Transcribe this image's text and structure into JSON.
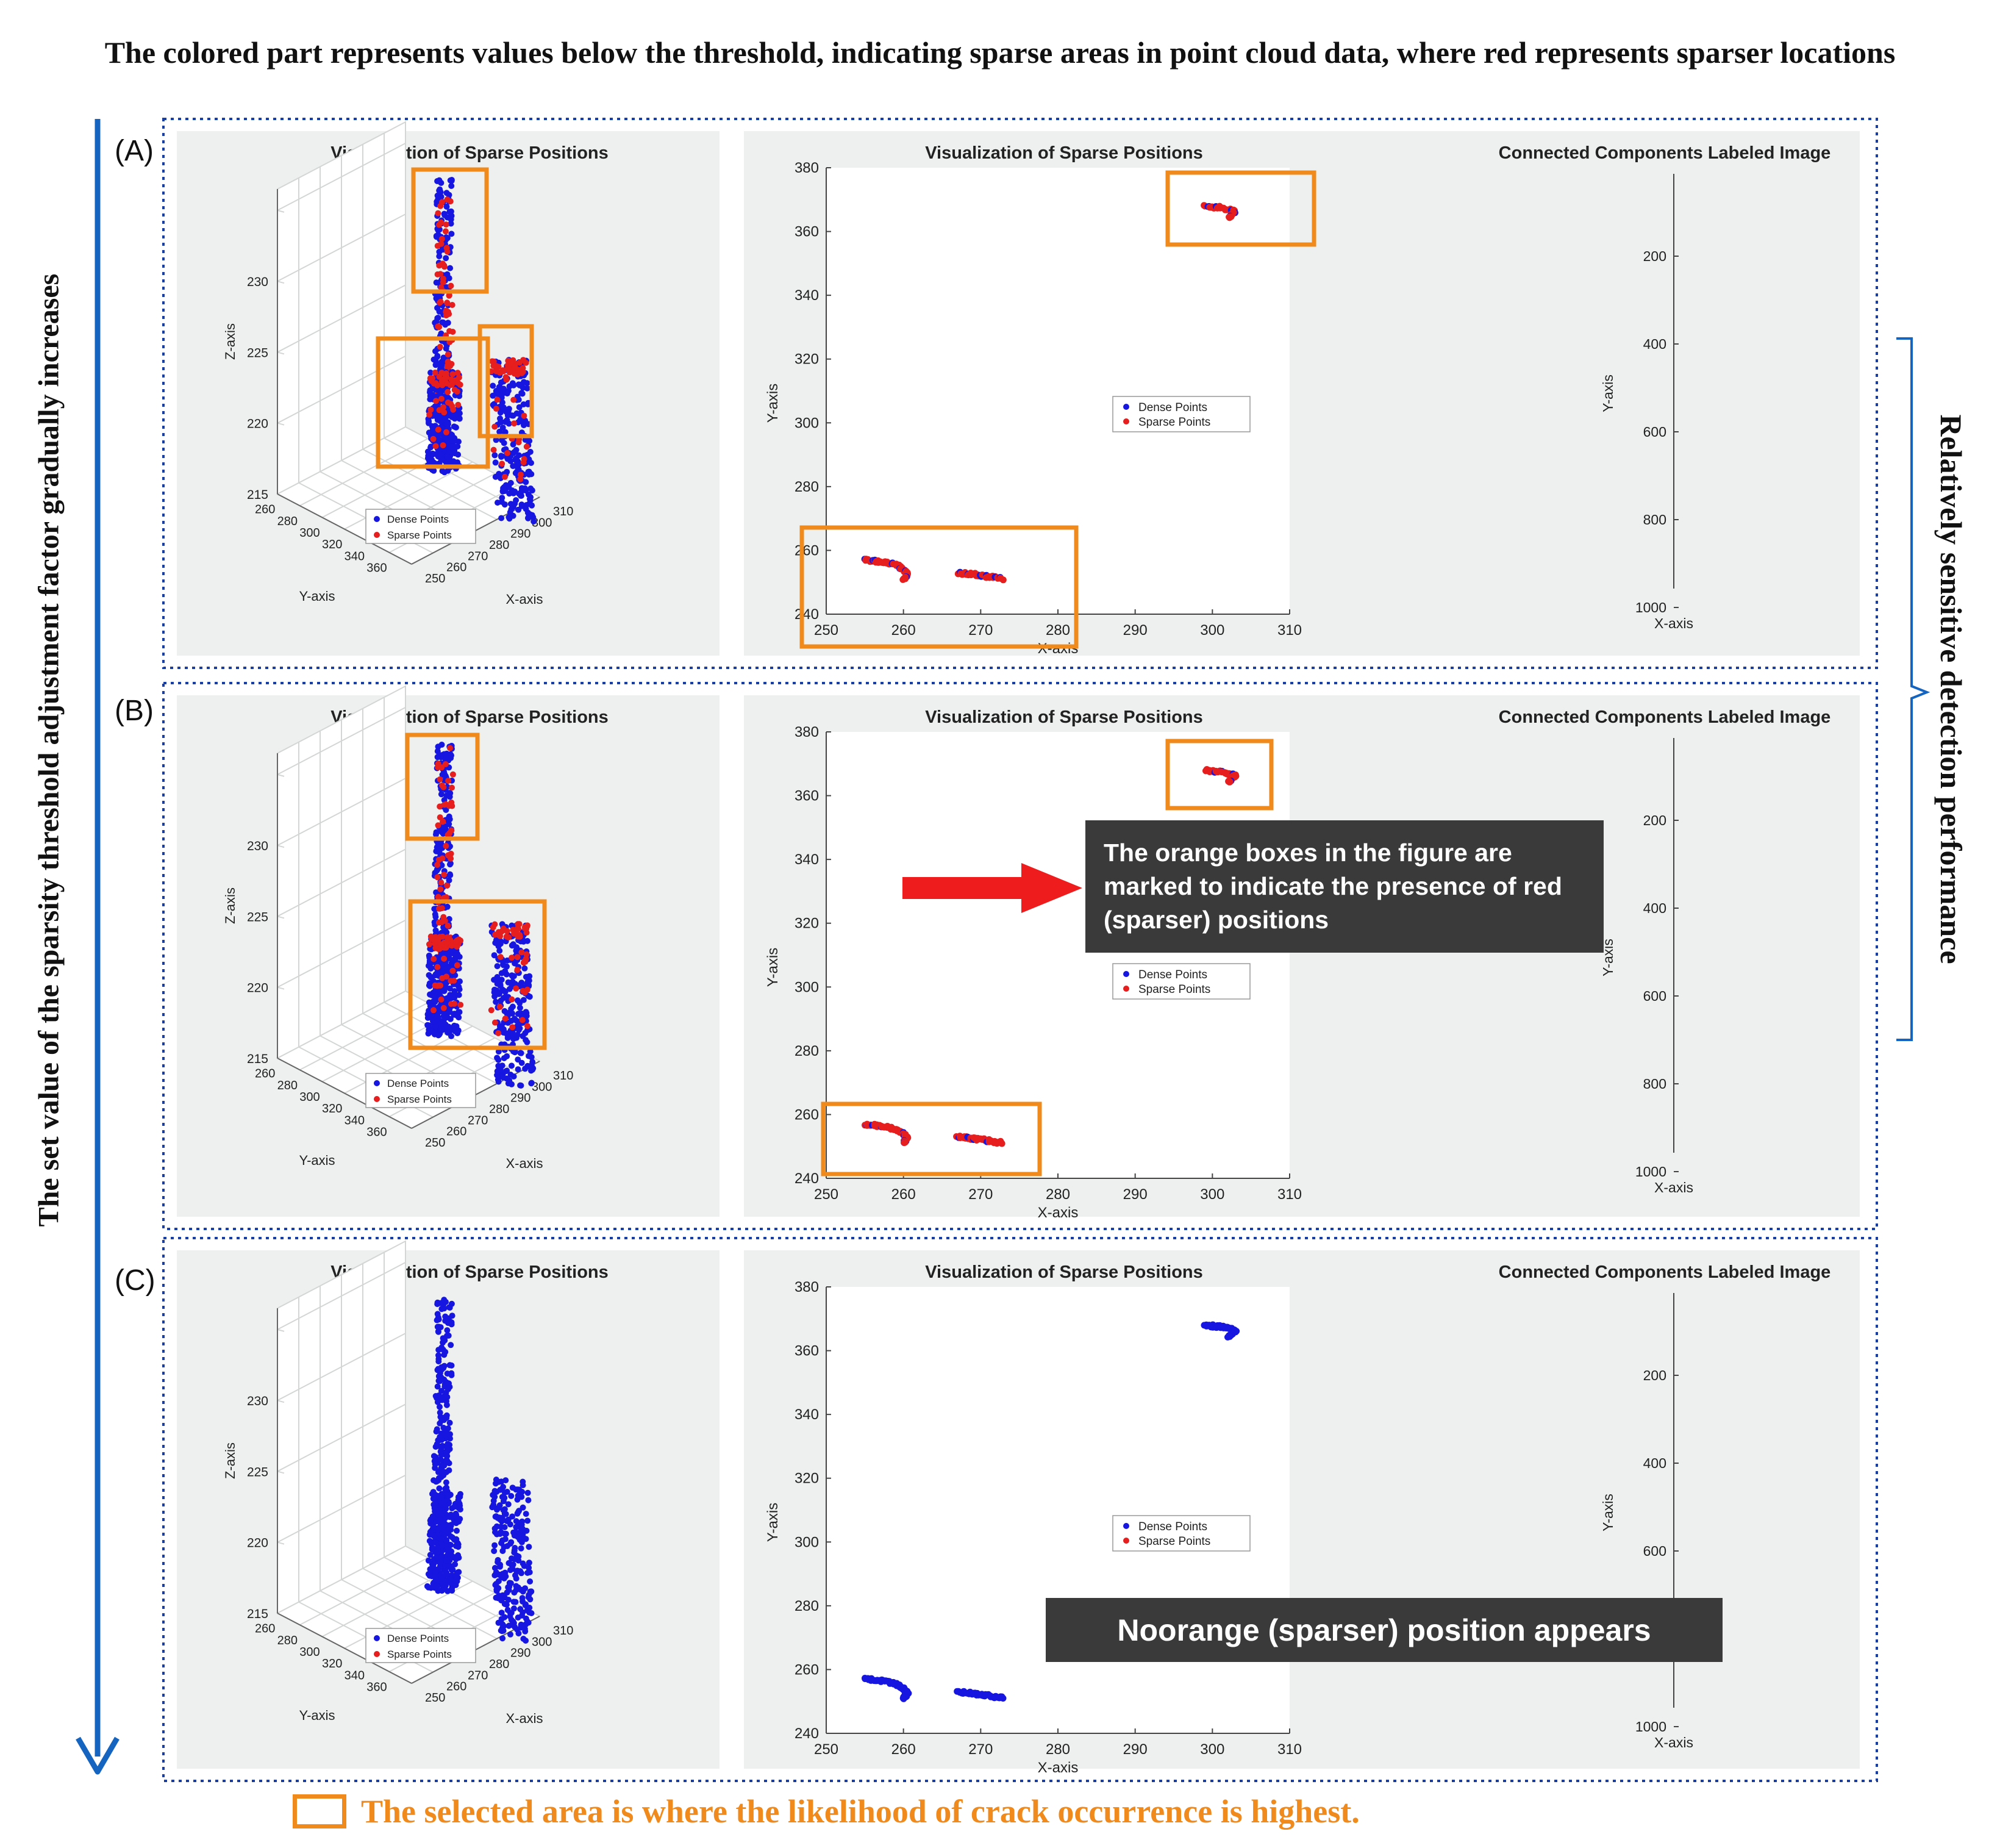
{
  "header": {
    "title": "The colored part represents values below the threshold, indicating sparse areas in point cloud data, where red represents sparser locations"
  },
  "side": {
    "left_label": "The set value of the sparsity threshold adjustment factor gradually increases",
    "right_label": "Relatively sensitive detection performance"
  },
  "footer": {
    "text": "The selected area is where the likelihood of crack occurrence is highest."
  },
  "callouts": {
    "b": "The orange boxes in the figure are marked to indicate the presence of red (sparser) positions",
    "c": "Noorange (sparser) position appears"
  },
  "colors": {
    "dense": "#1616e0",
    "sparse": "#e61e1e",
    "highlight_box": "#f08a1c",
    "arrow_left": "#1565c0",
    "arrow_callout": "#ee1c1c",
    "panel_bg": "#eef0f0",
    "dotted_border": "#1b3fa0"
  },
  "panels": [
    {
      "tag": "(A)",
      "red_visible": true
    },
    {
      "tag": "(B)",
      "red_visible": true
    },
    {
      "tag": "(C)",
      "red_visible": false
    }
  ],
  "chart_data": [
    {
      "type": "scatter3d",
      "title": "Visualization of Sparse Positions",
      "xlabel": "X-axis",
      "ylabel": "Y-axis",
      "zlabel": "Z-axis",
      "x_ticks": [
        "250",
        "260",
        "270",
        "280",
        "290",
        "300",
        "310"
      ],
      "y_ticks": [
        "260",
        "280",
        "300",
        "320",
        "340",
        "360"
      ],
      "z_ticks": [
        "215",
        "220",
        "225",
        "230"
      ],
      "legend": [
        "Dense Points",
        "Sparse Points"
      ],
      "legend_position": "bottom-center",
      "grid": true
    },
    {
      "type": "scatter",
      "title": "Visualization of Sparse Positions",
      "xlabel": "X-axis",
      "ylabel": "Y-axis",
      "xlim": [
        250,
        310
      ],
      "ylim": [
        240,
        380
      ],
      "x_ticks": [
        "250",
        "260",
        "270",
        "280",
        "290",
        "300",
        "310"
      ],
      "y_ticks": [
        "240",
        "260",
        "280",
        "300",
        "320",
        "340",
        "360",
        "380"
      ],
      "legend": [
        "Dense Points",
        "Sparse Points"
      ],
      "legend_position": "center",
      "clusters": [
        {
          "name": "left-crack",
          "points": [
            [
              255,
              257
            ],
            [
              257,
              256.5
            ],
            [
              259,
              255.5
            ],
            [
              260,
              254
            ],
            [
              260.5,
              252.5
            ],
            [
              260,
              251
            ]
          ]
        },
        {
          "name": "middle-crack",
          "points": [
            [
              267,
              253
            ],
            [
              269,
              252.5
            ],
            [
              271,
              251.8
            ],
            [
              273,
              251
            ]
          ]
        },
        {
          "name": "upper-crack",
          "points": [
            [
              299,
              368
            ],
            [
              301,
              367.5
            ],
            [
              303,
              366.5
            ],
            [
              302,
              364
            ]
          ]
        }
      ]
    },
    {
      "type": "labeled-image",
      "title": "Connected Components Labeled Image",
      "xlabel": "X-axis",
      "ylabel": "Y-axis",
      "y_ticks": [
        "200",
        "400",
        "600",
        "800",
        "1000"
      ]
    }
  ]
}
